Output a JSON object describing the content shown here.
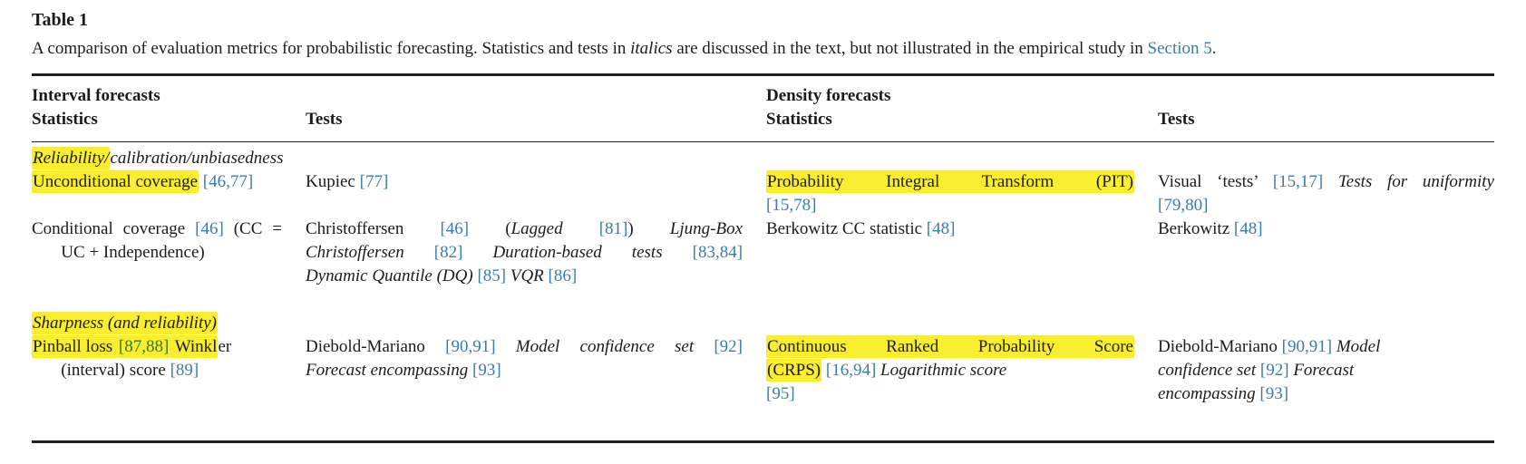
{
  "colors": {
    "link": "#3a7ca9",
    "highlight": "#f8ee2f",
    "ref_on_highlight": "#3b7627",
    "text": "#1b1b1b",
    "rule": "#1f1f1f"
  },
  "title": "Table 1",
  "caption": [
    {
      "t": "A comparison of evaluation metrics for probabilistic forecasting. Statistics and tests in "
    },
    {
      "t": "italics",
      "i": true
    },
    {
      "t": " are discussed in the text, but not illustrated in the empirical study in "
    },
    {
      "t": "Section 5",
      "link": true
    },
    {
      "t": "."
    }
  ],
  "table": {
    "header": {
      "group_left": "Interval forecasts",
      "group_right": "Density forecasts",
      "left_statistics": "Statistics",
      "left_tests": "Tests",
      "right_statistics": "Statistics",
      "right_tests": "Tests"
    },
    "sections": [
      {
        "label": [
          {
            "t": "Reliability/",
            "i": true,
            "hl": true
          },
          {
            "t": "calibration/unbiasedness",
            "i": true
          }
        ],
        "rows": [
          {
            "cells": [
              {
                "lines": [
                  {
                    "segments": [
                      {
                        "t": "Unconditional coverage",
                        "hl": true
                      },
                      {
                        "t": " "
                      },
                      {
                        "t": "[46,77]",
                        "ref": true
                      }
                    ]
                  }
                ]
              },
              {
                "lines": [
                  {
                    "segments": [
                      {
                        "t": "Kupiec "
                      },
                      {
                        "t": "[77]",
                        "ref": true
                      }
                    ]
                  }
                ]
              },
              {
                "lines": [
                  {
                    "segments": [
                      {
                        "t": "Probability Integral Transform (PIT)",
                        "hl": true
                      }
                    ],
                    "j": true
                  },
                  {
                    "segments": [
                      {
                        "t": "[15,78]",
                        "ref": true
                      }
                    ]
                  }
                ]
              },
              {
                "lines": [
                  {
                    "segments": [
                      {
                        "t": "Visual ‘tests’ "
                      },
                      {
                        "t": "[15,17]",
                        "ref": true
                      },
                      {
                        "t": " "
                      },
                      {
                        "t": "Tests for uniformity",
                        "i": true
                      }
                    ],
                    "j": true
                  },
                  {
                    "segments": [
                      {
                        "t": "[79,80]",
                        "ref": true
                      }
                    ]
                  }
                ]
              }
            ]
          },
          {
            "cells": [
              {
                "lines": [
                  {
                    "segments": [
                      {
                        "t": "Conditional coverage "
                      },
                      {
                        "t": "[46]",
                        "ref": true
                      },
                      {
                        "t": " (CC ="
                      }
                    ],
                    "j": true
                  },
                  {
                    "segments": [
                      {
                        "t": "UC + Independence)"
                      }
                    ],
                    "indent": true
                  }
                ]
              },
              {
                "lines": [
                  {
                    "segments": [
                      {
                        "t": "Christoffersen "
                      },
                      {
                        "t": "[46]",
                        "ref": true
                      },
                      {
                        "t": " ("
                      },
                      {
                        "t": "Lagged",
                        "i": true
                      },
                      {
                        "t": " "
                      },
                      {
                        "t": "[81]",
                        "ref": true
                      },
                      {
                        "t": ") "
                      },
                      {
                        "t": "Ljung-Box",
                        "i": true
                      }
                    ],
                    "j": true
                  },
                  {
                    "segments": [
                      {
                        "t": "Christoffersen",
                        "i": true
                      },
                      {
                        "t": " "
                      },
                      {
                        "t": "[82]",
                        "ref": true
                      },
                      {
                        "t": " "
                      },
                      {
                        "t": "Duration-based tests",
                        "i": true
                      },
                      {
                        "t": " "
                      },
                      {
                        "t": "[83,84]",
                        "ref": true
                      }
                    ],
                    "j": true
                  },
                  {
                    "segments": [
                      {
                        "t": "Dynamic Quantile (DQ)",
                        "i": true
                      },
                      {
                        "t": " "
                      },
                      {
                        "t": "[85]",
                        "ref": true
                      },
                      {
                        "t": " "
                      },
                      {
                        "t": "VQR",
                        "i": true
                      },
                      {
                        "t": " "
                      },
                      {
                        "t": "[86]",
                        "ref": true
                      }
                    ]
                  }
                ]
              },
              {
                "lines": [
                  {
                    "segments": [
                      {
                        "t": "Berkowitz CC statistic "
                      },
                      {
                        "t": "[48]",
                        "ref": true
                      }
                    ]
                  }
                ]
              },
              {
                "lines": [
                  {
                    "segments": [
                      {
                        "t": "Berkowitz "
                      },
                      {
                        "t": "[48]",
                        "ref": true
                      }
                    ]
                  }
                ]
              }
            ]
          }
        ]
      },
      {
        "label": [
          {
            "t": "Sharpness (and reliability)",
            "i": true,
            "hl": true
          }
        ],
        "rows": [
          {
            "cells": [
              {
                "lines": [
                  {
                    "segments": [
                      {
                        "t": "Pinball loss ",
                        "hl": true
                      },
                      {
                        "t": "[87,88]",
                        "ref": true,
                        "hl": true
                      },
                      {
                        "t": " Winkl",
                        "hl": true
                      },
                      {
                        "t": "er"
                      }
                    ]
                  },
                  {
                    "segments": [
                      {
                        "t": "(interval) score "
                      },
                      {
                        "t": "[89]",
                        "ref": true
                      }
                    ],
                    "indent": true
                  }
                ]
              },
              {
                "lines": [
                  {
                    "segments": [
                      {
                        "t": "Diebold-Mariano "
                      },
                      {
                        "t": "[90,91]",
                        "ref": true
                      },
                      {
                        "t": " "
                      },
                      {
                        "t": "Model confidence set",
                        "i": true
                      },
                      {
                        "t": " "
                      },
                      {
                        "t": "[92]",
                        "ref": true
                      }
                    ],
                    "j": true
                  },
                  {
                    "segments": [
                      {
                        "t": "Forecast encompassing",
                        "i": true
                      },
                      {
                        "t": " "
                      },
                      {
                        "t": "[93]",
                        "ref": true
                      }
                    ]
                  }
                ]
              },
              {
                "lines": [
                  {
                    "segments": [
                      {
                        "t": "Continuous Ranked Probability Score",
                        "hl": true
                      }
                    ],
                    "j": true
                  },
                  {
                    "segments": [
                      {
                        "t": "(CRPS)",
                        "hl": true
                      },
                      {
                        "t": " "
                      },
                      {
                        "t": "[16,94]",
                        "ref": true
                      },
                      {
                        "t": " "
                      },
                      {
                        "t": "Logarithmic score",
                        "i": true
                      }
                    ]
                  },
                  {
                    "segments": [
                      {
                        "t": "[95]",
                        "ref": true
                      }
                    ]
                  }
                ]
              },
              {
                "lines": [
                  {
                    "segments": [
                      {
                        "t": "Diebold-Mariano "
                      },
                      {
                        "t": "[90,91]",
                        "ref": true
                      },
                      {
                        "t": " "
                      },
                      {
                        "t": "Model",
                        "i": true
                      }
                    ]
                  },
                  {
                    "segments": [
                      {
                        "t": "confidence set",
                        "i": true
                      },
                      {
                        "t": " "
                      },
                      {
                        "t": "[92]",
                        "ref": true
                      },
                      {
                        "t": " "
                      },
                      {
                        "t": "Forecast",
                        "i": true
                      }
                    ]
                  },
                  {
                    "segments": [
                      {
                        "t": "encompassing",
                        "i": true
                      },
                      {
                        "t": " "
                      },
                      {
                        "t": "[93]",
                        "ref": true
                      }
                    ]
                  }
                ]
              }
            ]
          }
        ]
      }
    ]
  }
}
